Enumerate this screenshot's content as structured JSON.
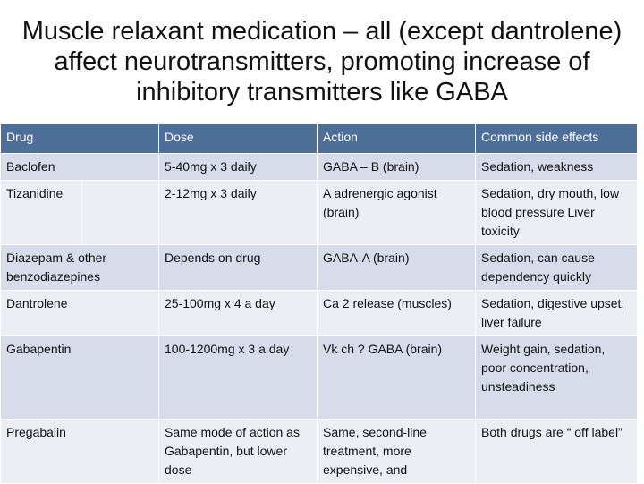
{
  "slide": {
    "title": "Muscle relaxant medication – all (except dantrolene) affect neurotransmitters, promoting increase of inhibitory transmitters like GABA"
  },
  "table": {
    "headers": [
      "Drug",
      "Dose",
      "Action",
      "Common side effects"
    ],
    "rows": [
      {
        "drug": "Baclofen",
        "dose": "5-40mg x 3 daily",
        "action": "GABA – B (brain)",
        "effects": "Sedation, weakness"
      },
      {
        "drug": "Tizanidine",
        "dose": "2-12mg x 3 daily",
        "action": "A adrenergic agonist (brain)",
        "effects": "Sedation, dry mouth, low blood pressure Liver toxicity"
      },
      {
        "drug": "Diazepam & other benzodiazepines",
        "dose": "Depends on drug",
        "action": "GABA-A (brain)",
        "effects": "Sedation, can cause dependency quickly"
      },
      {
        "drug": "Dantrolene",
        "dose": "25-100mg x 4 a day",
        "action": "Ca 2 release (muscles)",
        "effects": "Sedation, digestive upset, liver failure"
      },
      {
        "drug": "Gabapentin",
        "dose": "100-1200mg x 3 a day",
        "action": "Vk ch ? GABA (brain)",
        "effects": "Weight gain, sedation, poor concentration, unsteadiness"
      },
      {
        "drug": "Pregabalin",
        "dose": "Same mode of action as Gabapentin, but lower dose",
        "action": "Same, second-line treatment, more expensive, and",
        "effects": "Both drugs are “ off label”"
      }
    ]
  }
}
